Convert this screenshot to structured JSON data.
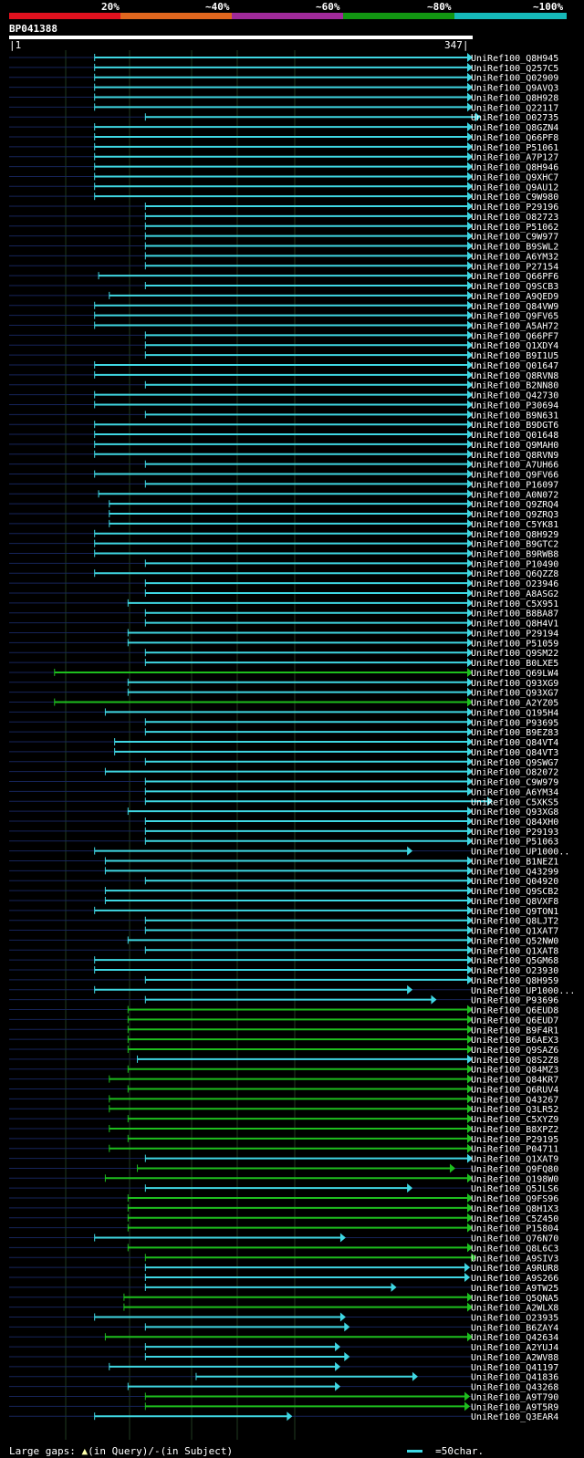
{
  "query": {
    "id": "BP041388",
    "start": "1",
    "end": "347"
  },
  "legend": {
    "labels": [
      "20%",
      "~40%",
      "~60%",
      "~80%",
      "~100%"
    ],
    "colors": [
      "#e0111e",
      "#e0661e",
      "#a02a9a",
      "#129612",
      "#16b9b9"
    ]
  },
  "chart_data": {
    "type": "alignment-overview",
    "query_length": 347,
    "rows": [
      {
        "id": "UniRef100_Q8H945",
        "start": 64,
        "end": 347,
        "identity": "cyan"
      },
      {
        "id": "UniRef100_Q257C5",
        "start": 64,
        "end": 347,
        "identity": "cyan"
      },
      {
        "id": "UniRef100_Q02909",
        "start": 64,
        "end": 347,
        "identity": "cyan"
      },
      {
        "id": "UniRef100_Q9AVQ3",
        "start": 64,
        "end": 347,
        "identity": "cyan"
      },
      {
        "id": "UniRef100_Q8H928",
        "start": 64,
        "end": 347,
        "identity": "cyan"
      },
      {
        "id": "UniRef100_Q22117",
        "start": 64,
        "end": 347,
        "identity": "cyan"
      },
      {
        "id": "UniRef100_O02735",
        "start": 102,
        "end": 353,
        "identity": "cyan"
      },
      {
        "id": "UniRef100_Q8GZN4",
        "start": 64,
        "end": 347,
        "identity": "cyan"
      },
      {
        "id": "UniRef100_Q66PF8",
        "start": 64,
        "end": 347,
        "identity": "cyan"
      },
      {
        "id": "UniRef100_P51061",
        "start": 64,
        "end": 347,
        "identity": "cyan"
      },
      {
        "id": "UniRef100_A7P127",
        "start": 64,
        "end": 347,
        "identity": "cyan"
      },
      {
        "id": "UniRef100_Q8H946",
        "start": 64,
        "end": 347,
        "identity": "cyan"
      },
      {
        "id": "UniRef100_Q9XHC7",
        "start": 64,
        "end": 347,
        "identity": "cyan"
      },
      {
        "id": "UniRef100_Q9AU12",
        "start": 64,
        "end": 347,
        "identity": "cyan"
      },
      {
        "id": "UniRef100_C9W980",
        "start": 64,
        "end": 347,
        "identity": "cyan"
      },
      {
        "id": "UniRef100_P29196",
        "start": 102,
        "end": 347,
        "identity": "cyan"
      },
      {
        "id": "UniRef100_O82723",
        "start": 102,
        "end": 347,
        "identity": "cyan"
      },
      {
        "id": "UniRef100_P51062",
        "start": 102,
        "end": 347,
        "identity": "cyan"
      },
      {
        "id": "UniRef100_C9W977",
        "start": 102,
        "end": 347,
        "identity": "cyan"
      },
      {
        "id": "UniRef100_B9SWL2",
        "start": 102,
        "end": 347,
        "identity": "cyan"
      },
      {
        "id": "UniRef100_A6YM32",
        "start": 102,
        "end": 347,
        "identity": "cyan"
      },
      {
        "id": "UniRef100_P27154",
        "start": 102,
        "end": 347,
        "identity": "cyan"
      },
      {
        "id": "UniRef100_Q66PF6",
        "start": 67,
        "end": 347,
        "identity": "cyan"
      },
      {
        "id": "UniRef100_Q9SCB3",
        "start": 102,
        "end": 347,
        "identity": "cyan"
      },
      {
        "id": "UniRef100_A9QED9",
        "start": 75,
        "end": 347,
        "identity": "cyan"
      },
      {
        "id": "UniRef100_Q84VW9",
        "start": 64,
        "end": 347,
        "identity": "cyan"
      },
      {
        "id": "UniRef100_Q9FV65",
        "start": 64,
        "end": 347,
        "identity": "cyan"
      },
      {
        "id": "UniRef100_A5AH72",
        "start": 64,
        "end": 347,
        "identity": "cyan"
      },
      {
        "id": "UniRef100_Q66PF7",
        "start": 102,
        "end": 347,
        "identity": "cyan"
      },
      {
        "id": "UniRef100_Q1XDY4",
        "start": 102,
        "end": 347,
        "identity": "cyan"
      },
      {
        "id": "UniRef100_B9I1U5",
        "start": 102,
        "end": 347,
        "identity": "cyan"
      },
      {
        "id": "UniRef100_Q01647",
        "start": 64,
        "end": 347,
        "identity": "cyan"
      },
      {
        "id": "UniRef100_Q8RVN8",
        "start": 64,
        "end": 347,
        "identity": "cyan"
      },
      {
        "id": "UniRef100_B2NN80",
        "start": 102,
        "end": 347,
        "identity": "cyan"
      },
      {
        "id": "UniRef100_Q42730",
        "start": 64,
        "end": 347,
        "identity": "cyan"
      },
      {
        "id": "UniRef100_P30694",
        "start": 64,
        "end": 347,
        "identity": "cyan"
      },
      {
        "id": "UniRef100_B9N631",
        "start": 102,
        "end": 347,
        "identity": "cyan"
      },
      {
        "id": "UniRef100_B9DGT6",
        "start": 64,
        "end": 347,
        "identity": "cyan"
      },
      {
        "id": "UniRef100_Q01648",
        "start": 64,
        "end": 347,
        "identity": "cyan"
      },
      {
        "id": "UniRef100_Q9MAH0",
        "start": 64,
        "end": 347,
        "identity": "cyan"
      },
      {
        "id": "UniRef100_Q8RVN9",
        "start": 64,
        "end": 347,
        "identity": "cyan"
      },
      {
        "id": "UniRef100_A7UH66",
        "start": 102,
        "end": 347,
        "identity": "cyan"
      },
      {
        "id": "UniRef100_Q9FV66",
        "start": 64,
        "end": 347,
        "identity": "cyan"
      },
      {
        "id": "UniRef100_P16097",
        "start": 102,
        "end": 347,
        "identity": "cyan"
      },
      {
        "id": "UniRef100_A0N072",
        "start": 67,
        "end": 347,
        "identity": "cyan"
      },
      {
        "id": "UniRef100_Q9ZRQ4",
        "start": 75,
        "end": 347,
        "identity": "cyan"
      },
      {
        "id": "UniRef100_Q9ZRQ3",
        "start": 75,
        "end": 347,
        "identity": "cyan"
      },
      {
        "id": "UniRef100_C5YK81",
        "start": 75,
        "end": 347,
        "identity": "cyan"
      },
      {
        "id": "UniRef100_Q8H929",
        "start": 64,
        "end": 347,
        "identity": "cyan"
      },
      {
        "id": "UniRef100_B9GTC2",
        "start": 64,
        "end": 347,
        "identity": "cyan"
      },
      {
        "id": "UniRef100_B9RWB8",
        "start": 64,
        "end": 347,
        "identity": "cyan"
      },
      {
        "id": "UniRef100_P10490",
        "start": 102,
        "end": 347,
        "identity": "cyan"
      },
      {
        "id": "UniRef100_Q6QZZ8",
        "start": 64,
        "end": 347,
        "identity": "cyan"
      },
      {
        "id": "UniRef100_O23946",
        "start": 102,
        "end": 347,
        "identity": "cyan"
      },
      {
        "id": "UniRef100_A8ASG2",
        "start": 102,
        "end": 347,
        "identity": "cyan"
      },
      {
        "id": "UniRef100_C5X951",
        "start": 89,
        "end": 347,
        "identity": "cyan"
      },
      {
        "id": "UniRef100_B8BA87",
        "start": 102,
        "end": 347,
        "identity": "cyan"
      },
      {
        "id": "UniRef100_Q8H4V1",
        "start": 102,
        "end": 347,
        "identity": "cyan"
      },
      {
        "id": "UniRef100_P29194",
        "start": 89,
        "end": 347,
        "identity": "cyan"
      },
      {
        "id": "UniRef100_P51059",
        "start": 89,
        "end": 347,
        "identity": "cyan"
      },
      {
        "id": "UniRef100_Q9SM22",
        "start": 102,
        "end": 347,
        "identity": "cyan"
      },
      {
        "id": "UniRef100_B0LXE5",
        "start": 102,
        "end": 347,
        "identity": "cyan"
      },
      {
        "id": "UniRef100_Q69LW4",
        "start": 34,
        "end": 347,
        "identity": "green"
      },
      {
        "id": "UniRef100_Q93XG9",
        "start": 89,
        "end": 347,
        "identity": "cyan"
      },
      {
        "id": "UniRef100_Q93XG7",
        "start": 89,
        "end": 347,
        "identity": "cyan"
      },
      {
        "id": "UniRef100_A2YZ05",
        "start": 34,
        "end": 347,
        "identity": "green"
      },
      {
        "id": "UniRef100_Q195H4",
        "start": 72,
        "end": 347,
        "identity": "cyan"
      },
      {
        "id": "UniRef100_P93695",
        "start": 102,
        "end": 347,
        "identity": "cyan"
      },
      {
        "id": "UniRef100_B9EZ83",
        "start": 102,
        "end": 347,
        "identity": "cyan"
      },
      {
        "id": "UniRef100_Q84VT4",
        "start": 79,
        "end": 347,
        "identity": "cyan"
      },
      {
        "id": "UniRef100_Q84VT3",
        "start": 79,
        "end": 347,
        "identity": "cyan"
      },
      {
        "id": "UniRef100_Q9SWG7",
        "start": 102,
        "end": 347,
        "identity": "cyan"
      },
      {
        "id": "UniRef100_O82072",
        "start": 72,
        "end": 347,
        "identity": "cyan"
      },
      {
        "id": "UniRef100_C9W979",
        "start": 102,
        "end": 347,
        "identity": "cyan"
      },
      {
        "id": "UniRef100_A6YM34",
        "start": 102,
        "end": 347,
        "identity": "cyan"
      },
      {
        "id": "UniRef100_C5XKS5",
        "start": 102,
        "end": 362,
        "identity": "cyan"
      },
      {
        "id": "UniRef100_Q93XG8",
        "start": 89,
        "end": 347,
        "identity": "cyan"
      },
      {
        "id": "UniRef100_Q84XH0",
        "start": 102,
        "end": 347,
        "identity": "cyan"
      },
      {
        "id": "UniRef100_P29193",
        "start": 102,
        "end": 347,
        "identity": "cyan"
      },
      {
        "id": "UniRef100_P51063",
        "start": 102,
        "end": 347,
        "identity": "cyan"
      },
      {
        "id": "UniRef100_UP1000..",
        "start": 64,
        "end": 302,
        "identity": "cyan"
      },
      {
        "id": "UniRef100_B1NEZ1",
        "start": 72,
        "end": 347,
        "identity": "cyan"
      },
      {
        "id": "UniRef100_Q43299",
        "start": 72,
        "end": 347,
        "identity": "cyan"
      },
      {
        "id": "UniRef100_Q04920",
        "start": 102,
        "end": 347,
        "identity": "cyan"
      },
      {
        "id": "UniRef100_Q9SCB2",
        "start": 72,
        "end": 347,
        "identity": "cyan"
      },
      {
        "id": "UniRef100_Q8VXF8",
        "start": 72,
        "end": 347,
        "identity": "cyan"
      },
      {
        "id": "UniRef100_Q9TON1",
        "start": 64,
        "end": 347,
        "identity": "cyan"
      },
      {
        "id": "UniRef100_Q8LJT2",
        "start": 102,
        "end": 347,
        "identity": "cyan"
      },
      {
        "id": "UniRef100_Q1XAT7",
        "start": 102,
        "end": 347,
        "identity": "cyan"
      },
      {
        "id": "UniRef100_Q52NW0",
        "start": 89,
        "end": 347,
        "identity": "cyan"
      },
      {
        "id": "UniRef100_Q1XAT8",
        "start": 102,
        "end": 347,
        "identity": "cyan"
      },
      {
        "id": "UniRef100_Q5GM68",
        "start": 64,
        "end": 347,
        "identity": "cyan"
      },
      {
        "id": "UniRef100_O23930",
        "start": 64,
        "end": 347,
        "identity": "cyan"
      },
      {
        "id": "UniRef100_Q8H959",
        "start": 102,
        "end": 347,
        "identity": "cyan"
      },
      {
        "id": "UniRef100_UP1000...",
        "start": 64,
        "end": 302,
        "identity": "cyan"
      },
      {
        "id": "UniRef100_P93696",
        "start": 102,
        "end": 320,
        "identity": "cyan"
      },
      {
        "id": "UniRef100_Q6EUD8",
        "start": 89,
        "end": 347,
        "identity": "green"
      },
      {
        "id": "UniRef100_Q6EUD7",
        "start": 89,
        "end": 347,
        "identity": "green"
      },
      {
        "id": "UniRef100_B9F4R1",
        "start": 89,
        "end": 347,
        "identity": "green"
      },
      {
        "id": "UniRef100_B6AEX3",
        "start": 89,
        "end": 347,
        "identity": "green"
      },
      {
        "id": "UniRef100_Q9SAZ6",
        "start": 89,
        "end": 347,
        "identity": "green"
      },
      {
        "id": "UniRef100_Q8S2Z8",
        "start": 96,
        "end": 347,
        "identity": "cyan"
      },
      {
        "id": "UniRef100_Q84MZ3",
        "start": 89,
        "end": 347,
        "identity": "green"
      },
      {
        "id": "UniRef100_Q84KR7",
        "start": 75,
        "end": 347,
        "identity": "green"
      },
      {
        "id": "UniRef100_Q6RUV4",
        "start": 89,
        "end": 347,
        "identity": "green"
      },
      {
        "id": "UniRef100_Q43267",
        "start": 75,
        "end": 347,
        "identity": "green"
      },
      {
        "id": "UniRef100_Q3LR52",
        "start": 75,
        "end": 347,
        "identity": "green"
      },
      {
        "id": "UniRef100_C5XYZ9",
        "start": 89,
        "end": 347,
        "identity": "green"
      },
      {
        "id": "UniRef100_B8XPZ2",
        "start": 75,
        "end": 347,
        "identity": "green"
      },
      {
        "id": "UniRef100_P29195",
        "start": 89,
        "end": 347,
        "identity": "green"
      },
      {
        "id": "UniRef100_P04711",
        "start": 75,
        "end": 347,
        "identity": "green"
      },
      {
        "id": "UniRef100_Q1XAT9",
        "start": 102,
        "end": 347,
        "identity": "cyan"
      },
      {
        "id": "UniRef100_Q9FQ80",
        "start": 96,
        "end": 334,
        "identity": "green"
      },
      {
        "id": "UniRef100_Q198W0",
        "start": 72,
        "end": 347,
        "identity": "green"
      },
      {
        "id": "UniRef100_Q5JLS6",
        "start": 102,
        "end": 302,
        "identity": "cyan"
      },
      {
        "id": "UniRef100_Q9FS96",
        "start": 89,
        "end": 347,
        "identity": "green"
      },
      {
        "id": "UniRef100_Q8H1X3",
        "start": 89,
        "end": 347,
        "identity": "green"
      },
      {
        "id": "UniRef100_C5Z450",
        "start": 89,
        "end": 347,
        "identity": "green"
      },
      {
        "id": "UniRef100_P15804",
        "start": 89,
        "end": 347,
        "identity": "green"
      },
      {
        "id": "UniRef100_Q76N70",
        "start": 64,
        "end": 252,
        "identity": "cyan"
      },
      {
        "id": "UniRef100_Q8L6C3",
        "start": 89,
        "end": 347,
        "identity": "green"
      },
      {
        "id": "UniRef100_A9SIV3",
        "start": 102,
        "end": 350,
        "identity": "green"
      },
      {
        "id": "UniRef100_A9RUR8",
        "start": 102,
        "end": 345,
        "identity": "cyan"
      },
      {
        "id": "UniRef100_A9S266",
        "start": 102,
        "end": 345,
        "identity": "cyan"
      },
      {
        "id": "UniRef100_A9TW25",
        "start": 102,
        "end": 290,
        "identity": "cyan"
      },
      {
        "id": "UniRef100_Q5QNA5",
        "start": 86,
        "end": 347,
        "identity": "green"
      },
      {
        "id": "UniRef100_A2WLX8",
        "start": 86,
        "end": 347,
        "identity": "green"
      },
      {
        "id": "UniRef100_O23935",
        "start": 64,
        "end": 252,
        "identity": "cyan"
      },
      {
        "id": "UniRef100_B6ZAY4",
        "start": 102,
        "end": 255,
        "identity": "cyan"
      },
      {
        "id": "UniRef100_Q42634",
        "start": 72,
        "end": 347,
        "identity": "green"
      },
      {
        "id": "UniRef100_A2YUJ4",
        "start": 102,
        "end": 248,
        "identity": "cyan"
      },
      {
        "id": "UniRef100_A2WV88",
        "start": 102,
        "end": 255,
        "identity": "cyan"
      },
      {
        "id": "UniRef100_Q41197",
        "start": 75,
        "end": 248,
        "identity": "cyan"
      },
      {
        "id": "UniRef100_Q41836",
        "start": 140,
        "end": 306,
        "identity": "cyan"
      },
      {
        "id": "UniRef100_Q43268",
        "start": 89,
        "end": 248,
        "identity": "cyan"
      },
      {
        "id": "UniRef100_A9T790",
        "start": 102,
        "end": 345,
        "identity": "green"
      },
      {
        "id": "UniRef100_A9T5R9",
        "start": 102,
        "end": 345,
        "identity": "green"
      },
      {
        "id": "UniRef100_Q3EAR4",
        "start": 64,
        "end": 212,
        "identity": "cyan"
      }
    ]
  },
  "footer": {
    "gaps_label": "Large gaps:",
    "gap_query_text": "(in Query)/",
    "gap_subject_text": "(in Subject)",
    "scale_text": "=50char."
  }
}
